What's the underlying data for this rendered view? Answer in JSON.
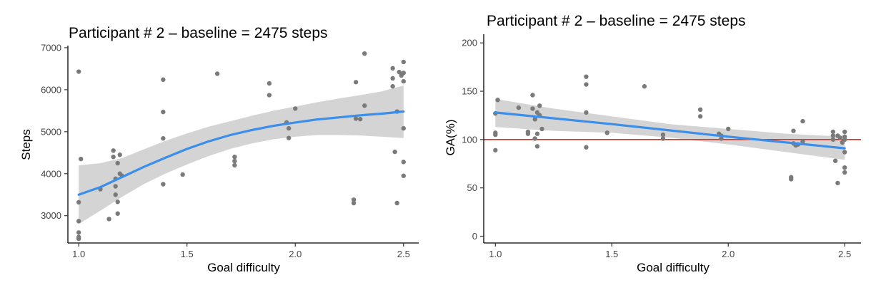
{
  "chart_data": [
    {
      "id": "left",
      "type": "scatter",
      "title": "Participant # 2 – baseline = 2475 steps",
      "xlabel": "Goal difficulty",
      "ylabel": "Steps",
      "xlim": [
        0.95,
        2.57
      ],
      "ylim": [
        2350,
        7050
      ],
      "xticks": [
        1.0,
        1.5,
        2.0,
        2.5
      ],
      "xtick_labels": [
        "1.0",
        "1.5",
        "2.0",
        "2.5"
      ],
      "yticks": [
        3000,
        4000,
        5000,
        6000,
        7000
      ],
      "ytick_labels": [
        "3000",
        "4000",
        "5000",
        "6000",
        "7000"
      ],
      "points": [
        {
          "x": 1.0,
          "y": 6430
        },
        {
          "x": 1.0,
          "y": 3320
        },
        {
          "x": 1.0,
          "y": 2870
        },
        {
          "x": 1.0,
          "y": 2600
        },
        {
          "x": 1.0,
          "y": 2490
        },
        {
          "x": 1.0,
          "y": 2450
        },
        {
          "x": 1.01,
          "y": 4350
        },
        {
          "x": 1.1,
          "y": 3630
        },
        {
          "x": 1.14,
          "y": 2920
        },
        {
          "x": 1.16,
          "y": 4550
        },
        {
          "x": 1.16,
          "y": 4400
        },
        {
          "x": 1.17,
          "y": 3880
        },
        {
          "x": 1.17,
          "y": 3700
        },
        {
          "x": 1.17,
          "y": 3500
        },
        {
          "x": 1.18,
          "y": 4250
        },
        {
          "x": 1.18,
          "y": 3330
        },
        {
          "x": 1.18,
          "y": 3050
        },
        {
          "x": 1.19,
          "y": 4450
        },
        {
          "x": 1.19,
          "y": 4000
        },
        {
          "x": 1.2,
          "y": 3950
        },
        {
          "x": 1.39,
          "y": 6240
        },
        {
          "x": 1.39,
          "y": 5470
        },
        {
          "x": 1.39,
          "y": 4840
        },
        {
          "x": 1.39,
          "y": 3750
        },
        {
          "x": 1.48,
          "y": 3980
        },
        {
          "x": 1.64,
          "y": 6380
        },
        {
          "x": 1.72,
          "y": 4400
        },
        {
          "x": 1.72,
          "y": 4300
        },
        {
          "x": 1.72,
          "y": 4200
        },
        {
          "x": 1.88,
          "y": 6150
        },
        {
          "x": 1.88,
          "y": 5870
        },
        {
          "x": 1.96,
          "y": 5220
        },
        {
          "x": 1.97,
          "y": 5080
        },
        {
          "x": 1.97,
          "y": 4850
        },
        {
          "x": 2.0,
          "y": 5550
        },
        {
          "x": 2.27,
          "y": 3380
        },
        {
          "x": 2.27,
          "y": 3300
        },
        {
          "x": 2.28,
          "y": 6180
        },
        {
          "x": 2.28,
          "y": 5310
        },
        {
          "x": 2.3,
          "y": 5300
        },
        {
          "x": 2.32,
          "y": 6860
        },
        {
          "x": 2.32,
          "y": 5620
        },
        {
          "x": 2.45,
          "y": 6510
        },
        {
          "x": 2.45,
          "y": 6270
        },
        {
          "x": 2.45,
          "y": 6080
        },
        {
          "x": 2.46,
          "y": 4520
        },
        {
          "x": 2.47,
          "y": 5480
        },
        {
          "x": 2.47,
          "y": 3300
        },
        {
          "x": 2.48,
          "y": 6420
        },
        {
          "x": 2.49,
          "y": 6340
        },
        {
          "x": 2.5,
          "y": 6660
        },
        {
          "x": 2.5,
          "y": 6400
        },
        {
          "x": 2.5,
          "y": 6200
        },
        {
          "x": 2.5,
          "y": 5080
        },
        {
          "x": 2.5,
          "y": 4280
        },
        {
          "x": 2.5,
          "y": 3950
        }
      ],
      "trend": {
        "color": "#3b8eea",
        "points": [
          {
            "x": 1.0,
            "y": 3500
          },
          {
            "x": 1.1,
            "y": 3680
          },
          {
            "x": 1.2,
            "y": 3920
          },
          {
            "x": 1.3,
            "y": 4160
          },
          {
            "x": 1.4,
            "y": 4380
          },
          {
            "x": 1.5,
            "y": 4590
          },
          {
            "x": 1.6,
            "y": 4770
          },
          {
            "x": 1.7,
            "y": 4920
          },
          {
            "x": 1.8,
            "y": 5040
          },
          {
            "x": 1.9,
            "y": 5140
          },
          {
            "x": 2.0,
            "y": 5220
          },
          {
            "x": 2.1,
            "y": 5290
          },
          {
            "x": 2.2,
            "y": 5340
          },
          {
            "x": 2.3,
            "y": 5390
          },
          {
            "x": 2.4,
            "y": 5430
          },
          {
            "x": 2.5,
            "y": 5480
          }
        ],
        "band_upper": [
          {
            "x": 1.0,
            "y": 4200
          },
          {
            "x": 1.1,
            "y": 4250
          },
          {
            "x": 1.2,
            "y": 4370
          },
          {
            "x": 1.3,
            "y": 4580
          },
          {
            "x": 1.4,
            "y": 4780
          },
          {
            "x": 1.5,
            "y": 4960
          },
          {
            "x": 1.6,
            "y": 5120
          },
          {
            "x": 1.7,
            "y": 5250
          },
          {
            "x": 1.8,
            "y": 5380
          },
          {
            "x": 1.9,
            "y": 5500
          },
          {
            "x": 2.0,
            "y": 5600
          },
          {
            "x": 2.1,
            "y": 5700
          },
          {
            "x": 2.2,
            "y": 5790
          },
          {
            "x": 2.3,
            "y": 5870
          },
          {
            "x": 2.4,
            "y": 5960
          },
          {
            "x": 2.5,
            "y": 6100
          }
        ],
        "band_lower": [
          {
            "x": 1.0,
            "y": 2800
          },
          {
            "x": 1.1,
            "y": 3120
          },
          {
            "x": 1.2,
            "y": 3450
          },
          {
            "x": 1.3,
            "y": 3750
          },
          {
            "x": 1.4,
            "y": 4000
          },
          {
            "x": 1.5,
            "y": 4220
          },
          {
            "x": 1.6,
            "y": 4420
          },
          {
            "x": 1.7,
            "y": 4590
          },
          {
            "x": 1.8,
            "y": 4720
          },
          {
            "x": 1.9,
            "y": 4820
          },
          {
            "x": 2.0,
            "y": 4880
          },
          {
            "x": 2.1,
            "y": 4920
          },
          {
            "x": 2.2,
            "y": 4920
          },
          {
            "x": 2.3,
            "y": 4910
          },
          {
            "x": 2.4,
            "y": 4880
          },
          {
            "x": 2.5,
            "y": 4850
          }
        ]
      }
    },
    {
      "id": "right",
      "type": "scatter",
      "title": "Participant # 2 – baseline = 2475 steps",
      "xlabel": "Goal difficulty",
      "ylabel": "GA(%)",
      "xlim": [
        0.95,
        2.57
      ],
      "ylim": [
        -7,
        209
      ],
      "xticks": [
        1.0,
        1.5,
        2.0,
        2.5
      ],
      "xtick_labels": [
        "1.0",
        "1.5",
        "2.0",
        "2.5"
      ],
      "yticks": [
        0,
        50,
        100,
        150,
        200
      ],
      "ytick_labels": [
        "0",
        "50",
        "100",
        "150",
        "200"
      ],
      "reference_line": {
        "y": 100,
        "color": "#e0302a"
      },
      "points": [
        {
          "x": 1.0,
          "y": 127
        },
        {
          "x": 1.0,
          "y": 107
        },
        {
          "x": 1.0,
          "y": 105
        },
        {
          "x": 1.0,
          "y": 89
        },
        {
          "x": 1.01,
          "y": 141
        },
        {
          "x": 1.1,
          "y": 133
        },
        {
          "x": 1.14,
          "y": 108
        },
        {
          "x": 1.14,
          "y": 106
        },
        {
          "x": 1.16,
          "y": 146
        },
        {
          "x": 1.16,
          "y": 132
        },
        {
          "x": 1.17,
          "y": 121
        },
        {
          "x": 1.17,
          "y": 101
        },
        {
          "x": 1.18,
          "y": 128
        },
        {
          "x": 1.18,
          "y": 106
        },
        {
          "x": 1.18,
          "y": 93
        },
        {
          "x": 1.19,
          "y": 135
        },
        {
          "x": 1.19,
          "y": 125
        },
        {
          "x": 1.2,
          "y": 111
        },
        {
          "x": 1.39,
          "y": 165
        },
        {
          "x": 1.39,
          "y": 157
        },
        {
          "x": 1.39,
          "y": 128
        },
        {
          "x": 1.39,
          "y": 92
        },
        {
          "x": 1.48,
          "y": 107
        },
        {
          "x": 1.64,
          "y": 155
        },
        {
          "x": 1.72,
          "y": 105
        },
        {
          "x": 1.72,
          "y": 101
        },
        {
          "x": 1.88,
          "y": 131
        },
        {
          "x": 1.88,
          "y": 124
        },
        {
          "x": 1.96,
          "y": 106
        },
        {
          "x": 1.97,
          "y": 104
        },
        {
          "x": 1.97,
          "y": 101
        },
        {
          "x": 2.0,
          "y": 111
        },
        {
          "x": 2.27,
          "y": 61
        },
        {
          "x": 2.27,
          "y": 59
        },
        {
          "x": 2.28,
          "y": 109
        },
        {
          "x": 2.28,
          "y": 96
        },
        {
          "x": 2.29,
          "y": 94
        },
        {
          "x": 2.3,
          "y": 95
        },
        {
          "x": 2.32,
          "y": 119
        },
        {
          "x": 2.32,
          "y": 98
        },
        {
          "x": 2.45,
          "y": 108
        },
        {
          "x": 2.45,
          "y": 104
        },
        {
          "x": 2.45,
          "y": 100
        },
        {
          "x": 2.46,
          "y": 78
        },
        {
          "x": 2.47,
          "y": 104
        },
        {
          "x": 2.47,
          "y": 55
        },
        {
          "x": 2.48,
          "y": 102
        },
        {
          "x": 2.49,
          "y": 97
        },
        {
          "x": 2.5,
          "y": 108
        },
        {
          "x": 2.5,
          "y": 103
        },
        {
          "x": 2.5,
          "y": 100
        },
        {
          "x": 2.5,
          "y": 87
        },
        {
          "x": 2.5,
          "y": 71
        },
        {
          "x": 2.5,
          "y": 66
        }
      ],
      "trend": {
        "color": "#3b8eea",
        "points": [
          {
            "x": 1.0,
            "y": 128
          },
          {
            "x": 1.5,
            "y": 116
          },
          {
            "x": 2.0,
            "y": 103
          },
          {
            "x": 2.5,
            "y": 91
          }
        ],
        "band_upper": [
          {
            "x": 1.0,
            "y": 142
          },
          {
            "x": 1.25,
            "y": 132
          },
          {
            "x": 1.5,
            "y": 124
          },
          {
            "x": 1.75,
            "y": 116
          },
          {
            "x": 2.0,
            "y": 111
          },
          {
            "x": 2.25,
            "y": 106
          },
          {
            "x": 2.5,
            "y": 103
          }
        ],
        "band_lower": [
          {
            "x": 1.0,
            "y": 113
          },
          {
            "x": 1.25,
            "y": 109
          },
          {
            "x": 1.5,
            "y": 107
          },
          {
            "x": 1.75,
            "y": 102
          },
          {
            "x": 2.0,
            "y": 95
          },
          {
            "x": 2.25,
            "y": 87
          },
          {
            "x": 2.5,
            "y": 79
          }
        ]
      }
    }
  ]
}
